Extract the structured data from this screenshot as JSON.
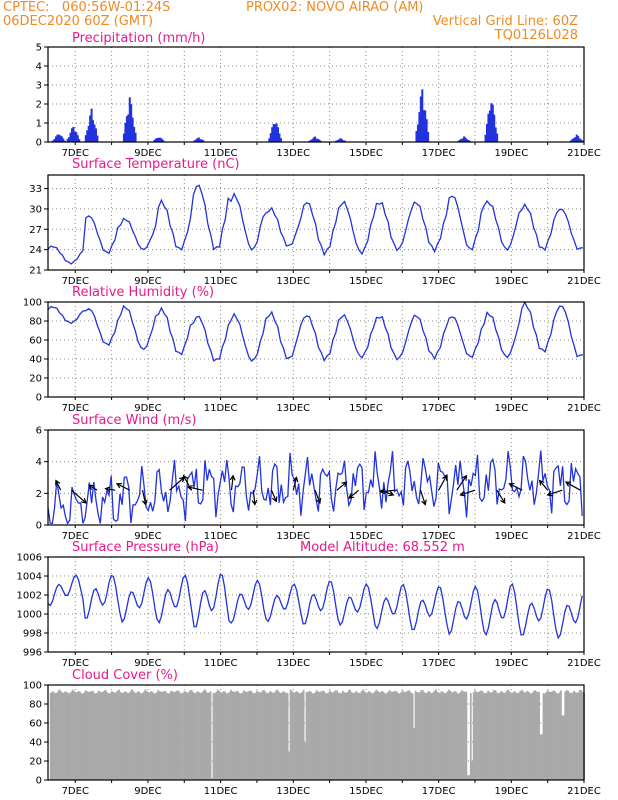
{
  "header": {
    "line1_left": "CPTEC:   060:56W-01:24S",
    "line1_mid": "PROX02: NOVO AIRAO (AM)",
    "line2_left": "06DEC2020 60Z (GMT)",
    "line2_right": "Vertical Grid Line: 60Z",
    "line3_right": "TQ0126L028"
  },
  "colors": {
    "accent": "#f08a24",
    "title": "#e8198b",
    "series": "#2233dd",
    "cloud": "#a9a9a9"
  },
  "chart_data": [
    {
      "type": "bar",
      "title": "Precipitation (mm/h)",
      "ylim": [
        0,
        5
      ],
      "yticks": [
        0,
        1,
        2,
        3,
        4,
        5
      ],
      "x_ticks": [
        "7DEC",
        "9DEC",
        "11DEC",
        "13DEC",
        "15DEC",
        "17DEC",
        "19DEC",
        "21DEC"
      ],
      "bursts": [
        {
          "day": 6.55,
          "peak": 0.5
        },
        {
          "day": 6.95,
          "peak": 0.9
        },
        {
          "day": 7.45,
          "peak": 1.8
        },
        {
          "day": 8.5,
          "peak": 2.5
        },
        {
          "day": 9.3,
          "peak": 0.3
        },
        {
          "day": 10.4,
          "peak": 0.25
        },
        {
          "day": 12.5,
          "peak": 1.3
        },
        {
          "day": 13.6,
          "peak": 0.3
        },
        {
          "day": 14.3,
          "peak": 0.2
        },
        {
          "day": 16.55,
          "peak": 3.0
        },
        {
          "day": 17.7,
          "peak": 0.3
        },
        {
          "day": 18.45,
          "peak": 2.5
        },
        {
          "day": 20.8,
          "peak": 0.4
        }
      ]
    },
    {
      "type": "line",
      "title": "Surface Temperature (nC)",
      "ylim": [
        21,
        35
      ],
      "yticks": [
        21,
        24,
        27,
        30,
        33
      ],
      "x_ticks": [
        "7DEC",
        "9DEC",
        "11DEC",
        "13DEC",
        "15DEC",
        "17DEC",
        "19DEC",
        "21DEC"
      ],
      "daily_max": [
        24.5,
        29,
        28.5,
        31,
        33.5,
        32,
        30,
        31,
        31,
        31,
        31,
        32,
        31,
        30.5,
        30,
        29,
        31
      ],
      "daily_min": [
        22,
        23.5,
        24,
        24,
        24,
        24,
        24.5,
        23.5,
        23.5,
        24,
        24,
        24,
        24,
        24,
        24,
        23.5,
        24
      ]
    },
    {
      "type": "line",
      "title": "Relative Humidity (%)",
      "ylim": [
        0,
        100
      ],
      "yticks": [
        0,
        20,
        40,
        60,
        80,
        100
      ],
      "x_ticks": [
        "7DEC",
        "9DEC",
        "11DEC",
        "13DEC",
        "15DEC",
        "17DEC",
        "19DEC",
        "21DEC"
      ],
      "daily_max": [
        95,
        93,
        95,
        92,
        85,
        86,
        88,
        86,
        86,
        85,
        86,
        85,
        88,
        98,
        96,
        92,
        90
      ],
      "daily_min": [
        78,
        55,
        50,
        45,
        38,
        38,
        40,
        40,
        42,
        40,
        42,
        42,
        42,
        48,
        42,
        42,
        48
      ]
    },
    {
      "type": "line",
      "title": "Surface Wind (m/s)",
      "ylim": [
        0,
        6
      ],
      "yticks": [
        0,
        2,
        4,
        6
      ],
      "x_ticks": [
        "7DEC",
        "9DEC",
        "11DEC",
        "13DEC",
        "15DEC",
        "17DEC",
        "19DEC",
        "21DEC"
      ],
      "mean": [
        1.1,
        1.4,
        1.8,
        2.2,
        2.6,
        2.4,
        2.5,
        2.6,
        2.7,
        2.6,
        2.7,
        2.6,
        2.8,
        2.8,
        2.6,
        2.4,
        2.5
      ],
      "vectors": [
        {
          "day": 6.6,
          "u": -0.3,
          "v": 0.6
        },
        {
          "day": 6.9,
          "u": 0.9,
          "v": -0.8
        },
        {
          "day": 7.6,
          "u": -0.5,
          "v": 0.3
        },
        {
          "day": 8.1,
          "u": -0.6,
          "v": 0.1
        },
        {
          "day": 8.5,
          "u": -0.8,
          "v": 0.4
        },
        {
          "day": 8.85,
          "u": 0.2,
          "v": -0.9
        },
        {
          "day": 9.6,
          "u": 0.9,
          "v": 0.8
        },
        {
          "day": 10.2,
          "u": -0.5,
          "v": 0.9
        },
        {
          "day": 10.5,
          "u": -0.9,
          "v": 0.2
        },
        {
          "day": 11.3,
          "u": 0.1,
          "v": 0.9
        },
        {
          "day": 11.9,
          "u": 0.1,
          "v": -0.9
        },
        {
          "day": 12.4,
          "u": 0.3,
          "v": -0.7
        },
        {
          "day": 13.0,
          "u": 0.2,
          "v": 0.8
        },
        {
          "day": 13.6,
          "u": 0.3,
          "v": -0.8
        },
        {
          "day": 14.2,
          "u": 0.6,
          "v": 0.5
        },
        {
          "day": 14.8,
          "u": -0.6,
          "v": -0.5
        },
        {
          "day": 15.4,
          "u": 0.8,
          "v": -0.3
        },
        {
          "day": 15.8,
          "u": -0.9,
          "v": -0.1
        },
        {
          "day": 16.5,
          "u": 0.3,
          "v": -0.9
        },
        {
          "day": 17.0,
          "u": 0.5,
          "v": 0.9
        },
        {
          "day": 17.5,
          "u": 0.6,
          "v": 0.9
        },
        {
          "day": 18.0,
          "u": -0.9,
          "v": -0.3
        },
        {
          "day": 18.6,
          "u": 0.5,
          "v": -0.8
        },
        {
          "day": 19.3,
          "u": -0.8,
          "v": 0.4
        },
        {
          "day": 20.0,
          "u": -0.5,
          "v": 0.6
        },
        {
          "day": 20.4,
          "u": -0.9,
          "v": -0.3
        },
        {
          "day": 20.9,
          "u": -0.9,
          "v": 0.5
        }
      ]
    },
    {
      "type": "line",
      "title": "Surface Pressure (hPa)",
      "subtitle": "Model Altitude: 68.552 m",
      "ylim": [
        996,
        1006
      ],
      "yticks": [
        996,
        998,
        1000,
        1002,
        1004,
        1006
      ],
      "x_ticks": [
        "7DEC",
        "9DEC",
        "11DEC",
        "13DEC",
        "15DEC",
        "17DEC",
        "19DEC",
        "21DEC"
      ],
      "mean": [
        1002.5,
        1001.8,
        1001.5,
        1001.6,
        1001.4,
        1001.3,
        1001.2,
        1001.2,
        1001.0,
        1000.8,
        1000.6,
        1000.4,
        1000.5,
        1000.2,
        1000.0,
        1000.1,
        999.8
      ],
      "amp": [
        1.8,
        2.6,
        2.6,
        2.8,
        3.2,
        2.5,
        2.2,
        2.6,
        2.4,
        2.6,
        2.6,
        2.8,
        3.0,
        2.8,
        2.8,
        2.6,
        2.8
      ]
    },
    {
      "type": "bar",
      "title": "Cloud Cover (%)",
      "ylim": [
        0,
        100
      ],
      "yticks": [
        0,
        20,
        40,
        60,
        80,
        100
      ],
      "x_ticks": [
        "7DEC",
        "9DEC",
        "11DEC",
        "13DEC",
        "15DEC",
        "17DEC",
        "19DEC",
        "21DEC"
      ],
      "typical": 96,
      "gaps": [
        {
          "day": 10.75,
          "value": 2
        },
        {
          "day": 12.85,
          "value": 30
        },
        {
          "day": 13.3,
          "value": 40
        },
        {
          "day": 17.8,
          "value": 5
        },
        {
          "day": 17.9,
          "value": 20
        },
        {
          "day": 16.3,
          "value": 55
        },
        {
          "day": 19.8,
          "value": 48
        },
        {
          "day": 20.4,
          "value": 68
        }
      ]
    }
  ]
}
